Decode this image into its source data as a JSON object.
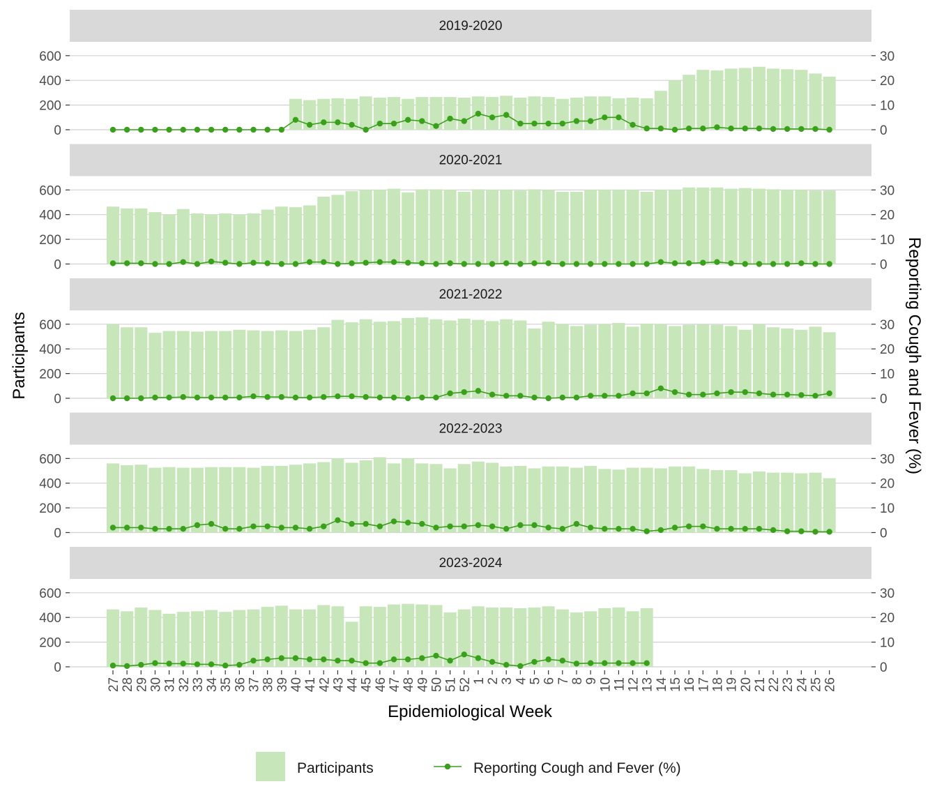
{
  "chart_data": {
    "type": "bar+line",
    "xlabel": "Epidemiological Week",
    "ylabel_left": "Participants",
    "ylabel_right": "Reporting Cough and Fever (%)",
    "ylim_left": [
      0,
      600
    ],
    "ylim_right": [
      0,
      30
    ],
    "yticks_left": [
      "0",
      "200",
      "400",
      "600"
    ],
    "yticks_right": [
      "0",
      "10",
      "20",
      "30"
    ],
    "grid": true,
    "legend_position": "bottom",
    "legend": {
      "bar_label": "Participants",
      "line_label": "Reporting Cough and Fever (%)"
    },
    "colors": {
      "bar": "#c7e6b9",
      "line": "#3aa01b",
      "strip": "#d9d9d9",
      "grid": "#d0d0d0",
      "text": "#4d4d4d"
    },
    "weeks": [
      "27",
      "28",
      "29",
      "30",
      "31",
      "32",
      "33",
      "34",
      "35",
      "36",
      "37",
      "38",
      "39",
      "40",
      "41",
      "42",
      "43",
      "44",
      "45",
      "46",
      "47",
      "48",
      "49",
      "50",
      "51",
      "52",
      "1",
      "2",
      "3",
      "4",
      "5",
      "6",
      "7",
      "8",
      "9",
      "10",
      "11",
      "12",
      "13",
      "14",
      "15",
      "16",
      "17",
      "18",
      "19",
      "20",
      "21",
      "22",
      "23",
      "24",
      "25",
      "26"
    ],
    "panels": [
      {
        "title": "2019-2020",
        "participants": [
          null,
          null,
          null,
          null,
          null,
          null,
          null,
          null,
          null,
          null,
          null,
          null,
          null,
          250,
          240,
          250,
          255,
          250,
          270,
          260,
          265,
          250,
          265,
          265,
          265,
          260,
          270,
          265,
          275,
          260,
          270,
          265,
          250,
          260,
          270,
          270,
          255,
          260,
          255,
          315,
          400,
          445,
          485,
          480,
          495,
          500,
          510,
          495,
          490,
          485,
          455,
          430
        ],
        "cough_fever": [
          0,
          0,
          0,
          0,
          0,
          0,
          0,
          0,
          0,
          0,
          0,
          0,
          0,
          4,
          2,
          3,
          3,
          2,
          0,
          2.5,
          2.5,
          4,
          3.5,
          1.5,
          4.5,
          3.5,
          6.5,
          5,
          6,
          2.5,
          2.5,
          2.5,
          2.5,
          3.5,
          3.5,
          5,
          5,
          2,
          0.5,
          0.5,
          0,
          0.5,
          0.5,
          1,
          0.5,
          0.5,
          0.5,
          0.3,
          0.3,
          0.3,
          0.3,
          0
        ]
      },
      {
        "title": "2020-2021",
        "participants": [
          465,
          450,
          450,
          420,
          400,
          445,
          410,
          400,
          410,
          400,
          410,
          440,
          465,
          460,
          475,
          545,
          560,
          590,
          600,
          600,
          610,
          580,
          605,
          605,
          600,
          585,
          605,
          600,
          600,
          595,
          605,
          600,
          585,
          585,
          600,
          600,
          600,
          600,
          585,
          600,
          600,
          620,
          620,
          620,
          610,
          615,
          610,
          605,
          600,
          600,
          595,
          595
        ],
        "cough_fever": [
          0.3,
          0.3,
          0.3,
          0,
          0,
          0.8,
          0,
          1,
          0.5,
          0,
          0.5,
          0.3,
          0,
          0,
          0.8,
          0.8,
          0,
          0.3,
          0.5,
          0.8,
          0.8,
          0.5,
          0.3,
          0,
          0.3,
          0,
          0,
          0,
          0.3,
          0,
          0.3,
          0.3,
          0,
          0,
          0,
          0,
          0,
          0,
          0,
          0.8,
          0.3,
          0.3,
          0.5,
          0.8,
          0.3,
          0,
          0,
          0,
          0,
          0.3,
          0,
          0
        ]
      },
      {
        "title": "2021-2022",
        "participants": [
          600,
          575,
          575,
          530,
          545,
          545,
          540,
          545,
          545,
          555,
          550,
          545,
          550,
          545,
          555,
          575,
          635,
          615,
          640,
          620,
          625,
          650,
          655,
          640,
          630,
          645,
          635,
          625,
          640,
          630,
          565,
          620,
          600,
          585,
          595,
          600,
          610,
          580,
          605,
          600,
          585,
          595,
          600,
          595,
          585,
          555,
          600,
          575,
          565,
          555,
          580,
          535
        ],
        "cough_fever": [
          0,
          0,
          0,
          0.3,
          0.3,
          0.5,
          0.3,
          0.3,
          0.3,
          0.3,
          0.8,
          0.5,
          0.5,
          0.3,
          0.3,
          0.5,
          0.8,
          0.8,
          0.5,
          0.3,
          0.3,
          0,
          0.3,
          0.3,
          2,
          2.5,
          3,
          1.5,
          1,
          1,
          0.3,
          0,
          0.3,
          0.3,
          1,
          1,
          1,
          2,
          2,
          4,
          2.5,
          1.5,
          1.5,
          2,
          2.5,
          2.5,
          2,
          1.5,
          1.5,
          1.3,
          1,
          2
        ]
      },
      {
        "title": "2022-2023",
        "participants": [
          560,
          545,
          550,
          525,
          530,
          525,
          525,
          530,
          530,
          530,
          525,
          540,
          540,
          550,
          560,
          570,
          600,
          565,
          585,
          610,
          560,
          600,
          560,
          555,
          520,
          555,
          575,
          565,
          535,
          540,
          520,
          535,
          535,
          525,
          540,
          515,
          510,
          525,
          525,
          520,
          535,
          535,
          515,
          505,
          505,
          480,
          495,
          485,
          485,
          480,
          485,
          440
        ],
        "cough_fever": [
          2,
          2,
          2,
          1.5,
          1.5,
          1.5,
          3,
          3.5,
          1.5,
          1.5,
          2.5,
          2.5,
          2,
          2,
          1.5,
          2.5,
          5,
          3.5,
          3.5,
          2.5,
          4.5,
          4,
          3.5,
          2,
          2.5,
          2.5,
          3,
          2.5,
          1.5,
          3,
          3,
          2,
          1.5,
          3.5,
          2,
          1.5,
          1.5,
          1.5,
          0.5,
          1,
          2,
          2.5,
          2.5,
          1.5,
          1.5,
          1.5,
          1.5,
          1,
          0.5,
          0.5,
          0.3,
          0.3
        ]
      },
      {
        "title": "2023-2024",
        "participants": [
          465,
          450,
          480,
          460,
          430,
          445,
          450,
          460,
          445,
          460,
          465,
          485,
          495,
          465,
          465,
          500,
          490,
          365,
          490,
          485,
          505,
          510,
          505,
          500,
          440,
          465,
          490,
          480,
          480,
          475,
          480,
          490,
          465,
          440,
          450,
          475,
          480,
          450,
          475,
          null,
          null,
          null,
          null,
          null,
          null,
          null,
          null,
          null,
          null,
          null,
          null,
          null
        ],
        "cough_fever": [
          0.5,
          0.3,
          0.8,
          1.5,
          1.3,
          1.3,
          1,
          1,
          0.5,
          0.8,
          2.5,
          3,
          3.5,
          3.5,
          3,
          3,
          2.5,
          2.5,
          1.5,
          1.5,
          3,
          3,
          3.5,
          4.5,
          2.5,
          5,
          3.5,
          2,
          0.8,
          0.3,
          2,
          3,
          2.5,
          1.3,
          1.5,
          1.5,
          1.5,
          1.5,
          1.5,
          null,
          null,
          null,
          null,
          null,
          null,
          null,
          null,
          null,
          null,
          null,
          null,
          null
        ]
      }
    ]
  }
}
